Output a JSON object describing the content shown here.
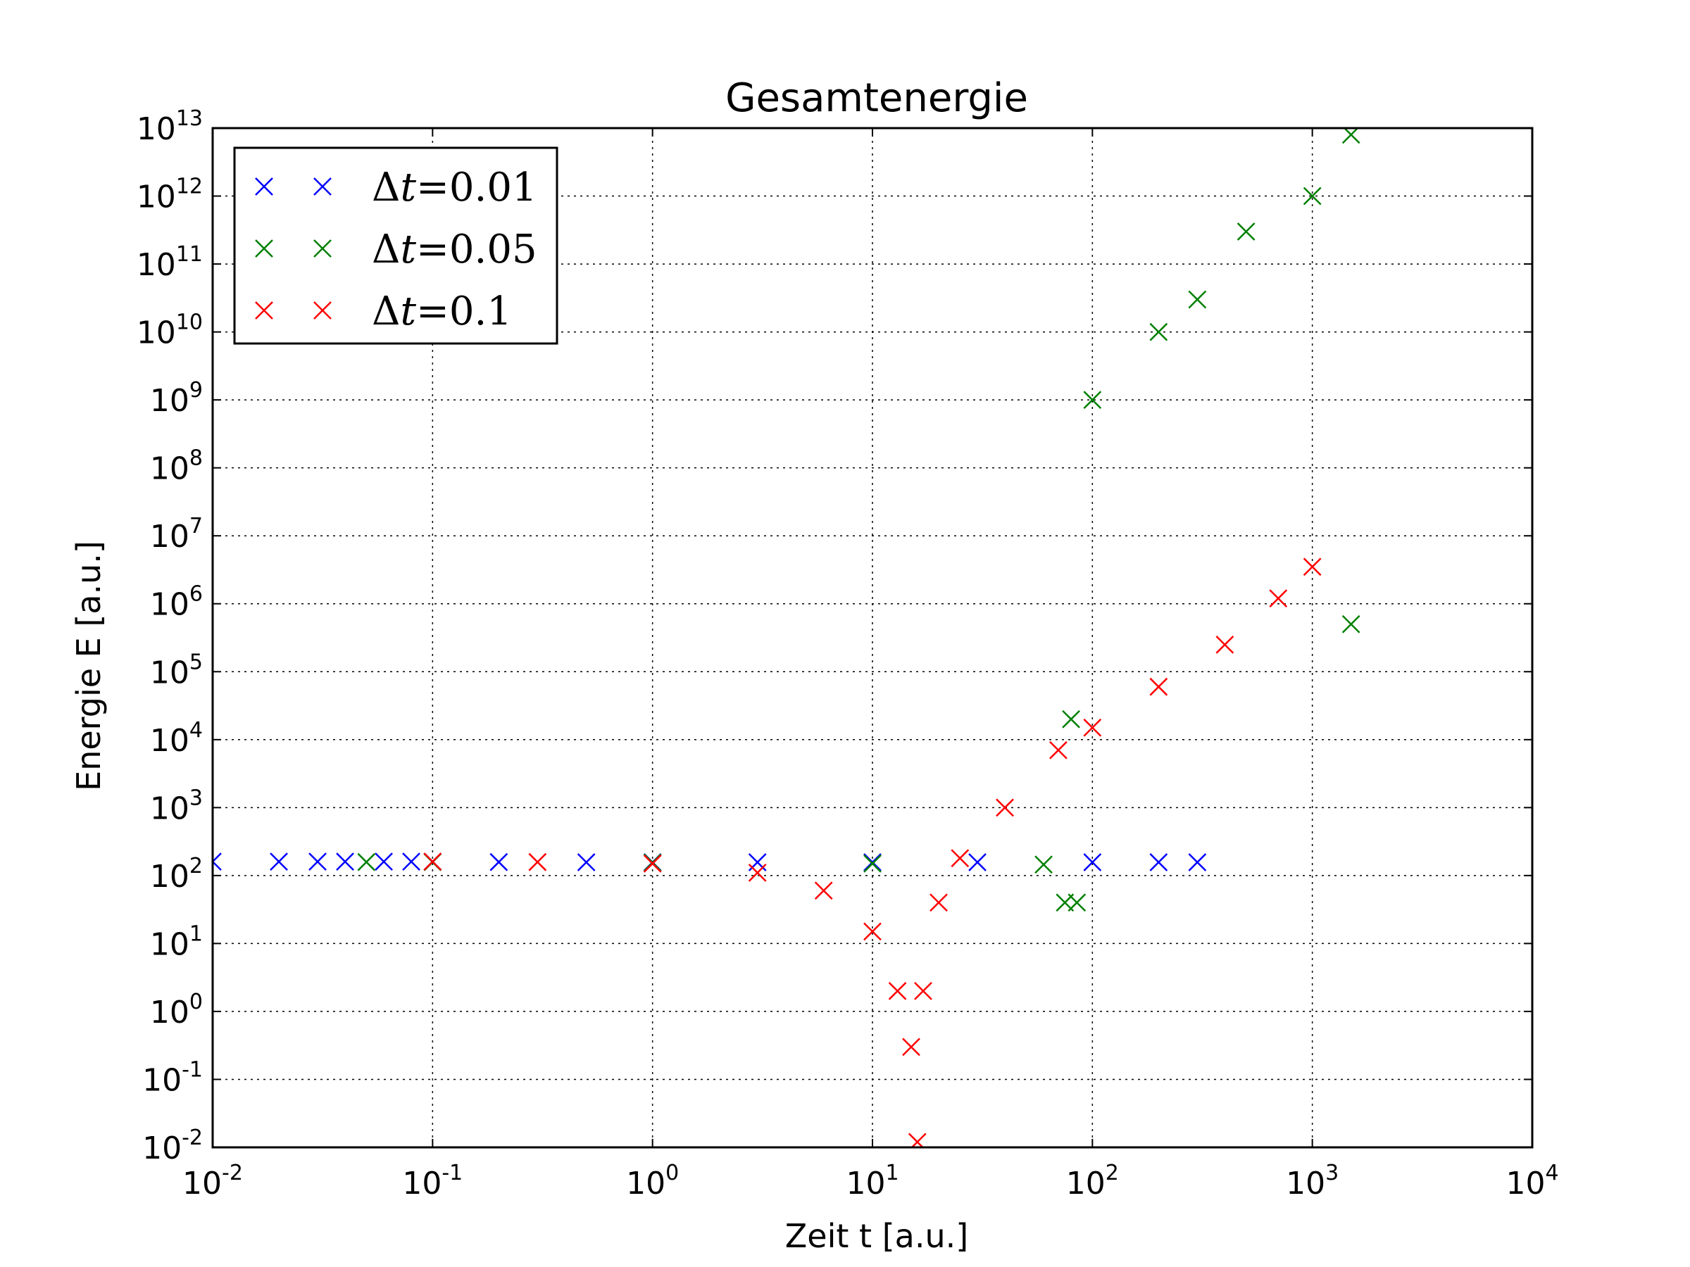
{
  "chart_data": {
    "type": "scatter",
    "title": "Gesamtenergie",
    "xlabel": "Zeit t [a.u.]",
    "ylabel": "Energie E [a.u.]",
    "xscale": "log",
    "yscale": "log",
    "xlim": [
      0.01,
      10000
    ],
    "ylim": [
      0.01,
      10000000000000
    ],
    "grid": true,
    "legend_position": "top-left",
    "marker": "x",
    "x_ticks": [
      {
        "base": "10",
        "exp": "-2"
      },
      {
        "base": "10",
        "exp": "-1"
      },
      {
        "base": "10",
        "exp": "0"
      },
      {
        "base": "10",
        "exp": "1"
      },
      {
        "base": "10",
        "exp": "2"
      },
      {
        "base": "10",
        "exp": "3"
      },
      {
        "base": "10",
        "exp": "4"
      }
    ],
    "y_ticks": [
      {
        "base": "10",
        "exp": "-2"
      },
      {
        "base": "10",
        "exp": "-1"
      },
      {
        "base": "10",
        "exp": "0"
      },
      {
        "base": "10",
        "exp": "1"
      },
      {
        "base": "10",
        "exp": "2"
      },
      {
        "base": "10",
        "exp": "3"
      },
      {
        "base": "10",
        "exp": "4"
      },
      {
        "base": "10",
        "exp": "5"
      },
      {
        "base": "10",
        "exp": "6"
      },
      {
        "base": "10",
        "exp": "7"
      },
      {
        "base": "10",
        "exp": "8"
      },
      {
        "base": "10",
        "exp": "9"
      },
      {
        "base": "10",
        "exp": "10"
      },
      {
        "base": "10",
        "exp": "11"
      },
      {
        "base": "10",
        "exp": "12"
      },
      {
        "base": "10",
        "exp": "13"
      }
    ],
    "series": [
      {
        "name": "Δt = 0.01",
        "legend_symbol": "Δ",
        "legend_var": "t",
        "legend_value": "=0.01",
        "color": "#0000ff",
        "points": [
          [
            0.01,
            160
          ],
          [
            0.02,
            160
          ],
          [
            0.03,
            160
          ],
          [
            0.04,
            160
          ],
          [
            0.06,
            160
          ],
          [
            0.08,
            160
          ],
          [
            0.1,
            160
          ],
          [
            0.2,
            158
          ],
          [
            0.5,
            157
          ],
          [
            1,
            157
          ],
          [
            3,
            157
          ],
          [
            10,
            157
          ],
          [
            30,
            157
          ],
          [
            100,
            157
          ],
          [
            200,
            157
          ],
          [
            300,
            157
          ]
        ]
      },
      {
        "name": "Δt = 0.05",
        "legend_symbol": "Δ",
        "legend_var": "t",
        "legend_value": "=0.05",
        "color": "#008000",
        "points": [
          [
            0.05,
            158
          ],
          [
            0.1,
            158
          ],
          [
            1,
            155
          ],
          [
            10,
            150
          ],
          [
            60,
            145
          ],
          [
            75,
            40
          ],
          [
            85,
            40
          ],
          [
            80,
            20000
          ],
          [
            100,
            1000000000
          ],
          [
            200,
            10000000000
          ],
          [
            300,
            30000000000
          ],
          [
            500,
            300000000000
          ],
          [
            1000,
            1000000000000
          ],
          [
            1500,
            8000000000000
          ],
          [
            1500,
            500000
          ]
        ]
      },
      {
        "name": "Δt = 0.1",
        "legend_symbol": "Δ",
        "legend_var": "t",
        "legend_value": "=0.1",
        "color": "#ff0000",
        "points": [
          [
            0.1,
            160
          ],
          [
            0.3,
            158
          ],
          [
            1,
            150
          ],
          [
            3,
            110
          ],
          [
            6,
            60
          ],
          [
            10,
            15
          ],
          [
            13,
            2
          ],
          [
            15,
            0.3
          ],
          [
            16,
            0.012
          ],
          [
            17,
            2
          ],
          [
            20,
            40
          ],
          [
            25,
            180
          ],
          [
            40,
            1000
          ],
          [
            70,
            7000
          ],
          [
            100,
            15000
          ],
          [
            200,
            60000
          ],
          [
            400,
            250000
          ],
          [
            700,
            1200000
          ],
          [
            1000,
            3500000
          ]
        ]
      }
    ]
  }
}
